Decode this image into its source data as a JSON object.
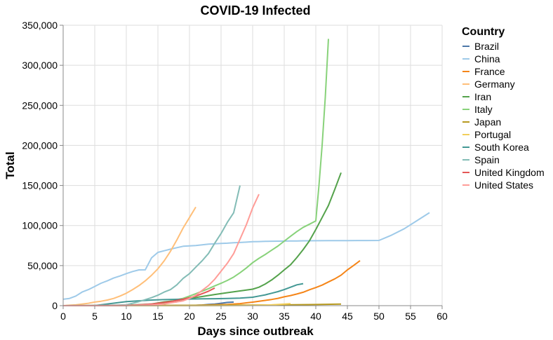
{
  "chart_data": {
    "type": "line",
    "title": "COVID-19 Infected",
    "xlabel": "Days since outbreak",
    "ylabel": "Total",
    "xlim": [
      0,
      60
    ],
    "ylim": [
      0,
      350000
    ],
    "x_ticks": [
      0,
      5,
      10,
      15,
      20,
      25,
      30,
      35,
      40,
      45,
      50,
      55,
      60
    ],
    "y_ticks": [
      0,
      50000,
      100000,
      150000,
      200000,
      250000,
      300000,
      350000
    ],
    "y_tick_labels": [
      "0",
      "50,000",
      "100,000",
      "150,000",
      "200,000",
      "250,000",
      "300,000",
      "350,000"
    ],
    "grid": true,
    "legend": {
      "title": "Country",
      "position": "right"
    },
    "series": [
      {
        "name": "Brazil",
        "color": "#4c78a8",
        "points": [
          [
            0,
            0
          ],
          [
            2,
            0
          ],
          [
            4,
            0
          ],
          [
            6,
            0
          ],
          [
            8,
            0
          ],
          [
            10,
            0
          ],
          [
            12,
            0
          ],
          [
            14,
            0
          ],
          [
            16,
            0
          ],
          [
            18,
            0
          ],
          [
            19,
            0
          ],
          [
            20,
            200
          ],
          [
            21,
            400
          ],
          [
            22,
            800
          ],
          [
            23,
            1500
          ],
          [
            24,
            2000
          ],
          [
            25,
            3000
          ],
          [
            26,
            4000
          ],
          [
            27,
            4500
          ]
        ]
      },
      {
        "name": "China",
        "color": "#9ecae9",
        "points": [
          [
            0,
            8000
          ],
          [
            1,
            9000
          ],
          [
            2,
            12000
          ],
          [
            3,
            17000
          ],
          [
            4,
            20000
          ],
          [
            5,
            24000
          ],
          [
            6,
            28000
          ],
          [
            7,
            31000
          ],
          [
            8,
            34500
          ],
          [
            9,
            37000
          ],
          [
            10,
            40000
          ],
          [
            11,
            42600
          ],
          [
            12,
            44600
          ],
          [
            13,
            44700
          ],
          [
            14,
            59800
          ],
          [
            15,
            66500
          ],
          [
            16,
            68500
          ],
          [
            17,
            70500
          ],
          [
            18,
            72400
          ],
          [
            19,
            74100
          ],
          [
            20,
            74600
          ],
          [
            21,
            75100
          ],
          [
            22,
            75900
          ],
          [
            23,
            76800
          ],
          [
            24,
            77200
          ],
          [
            25,
            77700
          ],
          [
            26,
            78000
          ],
          [
            27,
            78500
          ],
          [
            28,
            78800
          ],
          [
            29,
            79300
          ],
          [
            30,
            79800
          ],
          [
            31,
            80000
          ],
          [
            32,
            80200
          ],
          [
            33,
            80400
          ],
          [
            34,
            80500
          ],
          [
            35,
            80600
          ],
          [
            36,
            80700
          ],
          [
            37,
            80800
          ],
          [
            38,
            80900
          ],
          [
            40,
            81000
          ],
          [
            42,
            81100
          ],
          [
            45,
            81200
          ],
          [
            48,
            81300
          ],
          [
            50,
            81400
          ],
          [
            52,
            88000
          ],
          [
            54,
            96000
          ],
          [
            56,
            106000
          ],
          [
            58,
            116000
          ]
        ]
      },
      {
        "name": "France",
        "color": "#f58518",
        "points": [
          [
            0,
            0
          ],
          [
            5,
            0
          ],
          [
            10,
            0
          ],
          [
            15,
            100
          ],
          [
            20,
            200
          ],
          [
            22,
            700
          ],
          [
            24,
            1100
          ],
          [
            26,
            1600
          ],
          [
            28,
            2500
          ],
          [
            29,
            3500
          ],
          [
            30,
            4400
          ],
          [
            31,
            5400
          ],
          [
            32,
            6600
          ],
          [
            33,
            7700
          ],
          [
            34,
            9100
          ],
          [
            35,
            11000
          ],
          [
            36,
            12600
          ],
          [
            37,
            14500
          ],
          [
            38,
            16700
          ],
          [
            39,
            19900
          ],
          [
            40,
            22600
          ],
          [
            41,
            25600
          ],
          [
            42,
            29600
          ],
          [
            43,
            33400
          ],
          [
            44,
            38100
          ],
          [
            45,
            44600
          ],
          [
            46,
            50200
          ],
          [
            47,
            56200
          ]
        ]
      },
      {
        "name": "Germany",
        "color": "#ffbf79",
        "points": [
          [
            0,
            0
          ],
          [
            1,
            500
          ],
          [
            2,
            1000
          ],
          [
            3,
            2000
          ],
          [
            4,
            3000
          ],
          [
            5,
            4500
          ],
          [
            6,
            5500
          ],
          [
            7,
            7000
          ],
          [
            8,
            9000
          ],
          [
            9,
            12000
          ],
          [
            10,
            15500
          ],
          [
            11,
            20000
          ],
          [
            12,
            25000
          ],
          [
            13,
            31000
          ],
          [
            14,
            38000
          ],
          [
            15,
            46000
          ],
          [
            16,
            56000
          ],
          [
            17,
            68000
          ],
          [
            18,
            82000
          ],
          [
            19,
            97000
          ],
          [
            20,
            110000
          ],
          [
            21,
            123000
          ]
        ]
      },
      {
        "name": "Iran",
        "color": "#54a24b",
        "points": [
          [
            0,
            0
          ],
          [
            5,
            200
          ],
          [
            10,
            500
          ],
          [
            14,
            2000
          ],
          [
            16,
            4700
          ],
          [
            18,
            6500
          ],
          [
            20,
            9000
          ],
          [
            22,
            11400
          ],
          [
            24,
            13900
          ],
          [
            26,
            16200
          ],
          [
            28,
            18400
          ],
          [
            30,
            20600
          ],
          [
            31,
            23000
          ],
          [
            32,
            27000
          ],
          [
            33,
            32000
          ],
          [
            34,
            38000
          ],
          [
            35,
            44600
          ],
          [
            36,
            51000
          ],
          [
            37,
            60000
          ],
          [
            38,
            70000
          ],
          [
            39,
            81000
          ],
          [
            40,
            95000
          ],
          [
            41,
            110000
          ],
          [
            42,
            125000
          ],
          [
            43,
            145000
          ],
          [
            44,
            166000
          ]
        ]
      },
      {
        "name": "Italy",
        "color": "#88d27a",
        "points": [
          [
            0,
            0
          ],
          [
            5,
            0
          ],
          [
            10,
            0
          ],
          [
            12,
            200
          ],
          [
            14,
            1000
          ],
          [
            16,
            3000
          ],
          [
            17,
            4600
          ],
          [
            18,
            7400
          ],
          [
            19,
            9100
          ],
          [
            20,
            12000
          ],
          [
            21,
            15000
          ],
          [
            22,
            18000
          ],
          [
            23,
            21200
          ],
          [
            24,
            24700
          ],
          [
            25,
            27900
          ],
          [
            26,
            31500
          ],
          [
            27,
            35700
          ],
          [
            28,
            41000
          ],
          [
            29,
            47000
          ],
          [
            30,
            53600
          ],
          [
            31,
            59100
          ],
          [
            32,
            63900
          ],
          [
            33,
            69200
          ],
          [
            34,
            74400
          ],
          [
            35,
            80500
          ],
          [
            36,
            86500
          ],
          [
            37,
            92500
          ],
          [
            38,
            97700
          ],
          [
            39,
            101700
          ],
          [
            40,
            105800
          ],
          [
            40.5,
            150000
          ],
          [
            41,
            200000
          ],
          [
            41.5,
            260000
          ],
          [
            42,
            333000
          ]
        ]
      },
      {
        "name": "Japan",
        "color": "#b79a20",
        "points": [
          [
            0,
            0
          ],
          [
            10,
            200
          ],
          [
            20,
            400
          ],
          [
            25,
            600
          ],
          [
            30,
            800
          ],
          [
            35,
            1000
          ],
          [
            40,
            1400
          ],
          [
            44,
            1900
          ]
        ]
      },
      {
        "name": "Portugal",
        "color": "#f2cf5b",
        "points": [
          [
            0,
            0
          ],
          [
            10,
            0
          ],
          [
            20,
            0
          ],
          [
            25,
            100
          ],
          [
            30,
            400
          ],
          [
            33,
            1000
          ],
          [
            35,
            2000
          ],
          [
            36,
            2500
          ]
        ]
      },
      {
        "name": "South Korea",
        "color": "#439894",
        "points": [
          [
            0,
            0
          ],
          [
            5,
            100
          ],
          [
            10,
            5000
          ],
          [
            12,
            6000
          ],
          [
            14,
            7000
          ],
          [
            16,
            7500
          ],
          [
            18,
            7900
          ],
          [
            20,
            8200
          ],
          [
            22,
            8500
          ],
          [
            24,
            8700
          ],
          [
            26,
            9000
          ],
          [
            28,
            9400
          ],
          [
            30,
            10500
          ],
          [
            31,
            12000
          ],
          [
            32,
            13500
          ],
          [
            33,
            15500
          ],
          [
            34,
            17500
          ],
          [
            35,
            20000
          ],
          [
            36,
            23000
          ],
          [
            37,
            26000
          ],
          [
            38,
            27500
          ]
        ]
      },
      {
        "name": "Spain",
        "color": "#83bcb6",
        "points": [
          [
            0,
            0
          ],
          [
            5,
            0
          ],
          [
            10,
            1000
          ],
          [
            12,
            5000
          ],
          [
            14,
            10000
          ],
          [
            15,
            13000
          ],
          [
            16,
            17000
          ],
          [
            17,
            20000
          ],
          [
            18,
            26000
          ],
          [
            19,
            34000
          ],
          [
            20,
            40000
          ],
          [
            21,
            48000
          ],
          [
            22,
            56000
          ],
          [
            23,
            65000
          ],
          [
            24,
            78000
          ],
          [
            25,
            90000
          ],
          [
            26,
            104000
          ],
          [
            27,
            116000
          ],
          [
            28,
            150000
          ]
        ]
      },
      {
        "name": "United Kingdom",
        "color": "#e45756",
        "points": [
          [
            0,
            0
          ],
          [
            5,
            0
          ],
          [
            10,
            200
          ],
          [
            12,
            1000
          ],
          [
            14,
            2000
          ],
          [
            15,
            3000
          ],
          [
            16,
            4000
          ],
          [
            17,
            5000
          ],
          [
            18,
            6600
          ],
          [
            19,
            8000
          ],
          [
            20,
            10000
          ],
          [
            21,
            12000
          ],
          [
            22,
            15000
          ],
          [
            23,
            18000
          ],
          [
            24,
            22000
          ]
        ]
      },
      {
        "name": "United States",
        "color": "#ff9d98",
        "points": [
          [
            0,
            0
          ],
          [
            5,
            100
          ],
          [
            10,
            200
          ],
          [
            12,
            500
          ],
          [
            14,
            1000
          ],
          [
            15,
            1500
          ],
          [
            16,
            2000
          ],
          [
            17,
            3500
          ],
          [
            18,
            4600
          ],
          [
            19,
            6000
          ],
          [
            20,
            9000
          ],
          [
            21,
            13000
          ],
          [
            22,
            19000
          ],
          [
            23,
            25000
          ],
          [
            24,
            33000
          ],
          [
            25,
            43000
          ],
          [
            26,
            53000
          ],
          [
            27,
            65000
          ],
          [
            28,
            83000
          ],
          [
            29,
            101000
          ],
          [
            30,
            122000
          ],
          [
            31,
            139000
          ]
        ]
      }
    ]
  }
}
